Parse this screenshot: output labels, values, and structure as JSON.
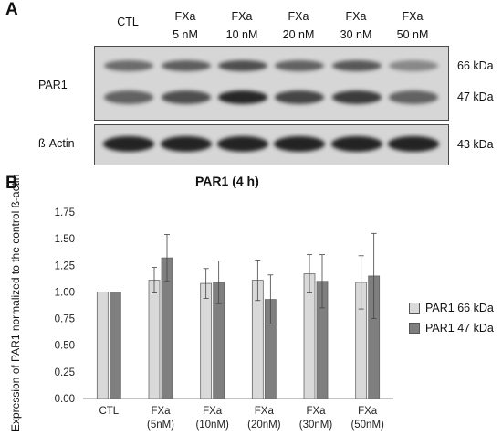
{
  "panel_a": {
    "letter": "A",
    "lanes": [
      {
        "line1": "CTL",
        "line2": ""
      },
      {
        "line1": "FXa",
        "line2": "5 nM"
      },
      {
        "line1": "FXa",
        "line2": "10 nM"
      },
      {
        "line1": "FXa",
        "line2": "20 nM"
      },
      {
        "line1": "FXa",
        "line2": "30 nM"
      },
      {
        "line1": "FXa",
        "line2": "50 nM"
      }
    ],
    "blot_par1_label": "PAR1",
    "blot_actin_label": "ß-Actin",
    "kda_66": "66 kDa",
    "kda_47": "47 kDa",
    "kda_43": "43 kDa"
  },
  "panel_b": {
    "letter": "B"
  },
  "colors": {
    "series_66": "#d9d9d9",
    "series_47": "#7f7f7f",
    "blot_bg": "#d6d6d6",
    "band": "#1a1a1a"
  },
  "chart_data": {
    "type": "bar",
    "title": "PAR1 (4 h)",
    "ylabel": "Expression of PAR1 normalized to the control ß-actin",
    "xlabel": "",
    "ylim": [
      0,
      1.75
    ],
    "yticks": [
      "0.00",
      "0.25",
      "0.50",
      "0.75",
      "1.00",
      "1.25",
      "1.50",
      "1.75"
    ],
    "grid": false,
    "legend_position": "right",
    "categories": [
      [
        "CTL",
        ""
      ],
      [
        "FXa",
        "(5nM)"
      ],
      [
        "FXa",
        "(10nM)"
      ],
      [
        "FXa",
        "(20nM)"
      ],
      [
        "FXa",
        "(30nM)"
      ],
      [
        "FXa",
        "(50nM)"
      ]
    ],
    "series": [
      {
        "name": "PAR1 66 kDa",
        "values": [
          1.0,
          1.11,
          1.08,
          1.11,
          1.17,
          1.09
        ],
        "errors": [
          0,
          0.12,
          0.14,
          0.19,
          0.18,
          0.25
        ]
      },
      {
        "name": "PAR1 47 kDa",
        "values": [
          1.0,
          1.32,
          1.09,
          0.93,
          1.1,
          1.15
        ],
        "errors": [
          0,
          0.22,
          0.2,
          0.23,
          0.25,
          0.4
        ]
      }
    ]
  }
}
